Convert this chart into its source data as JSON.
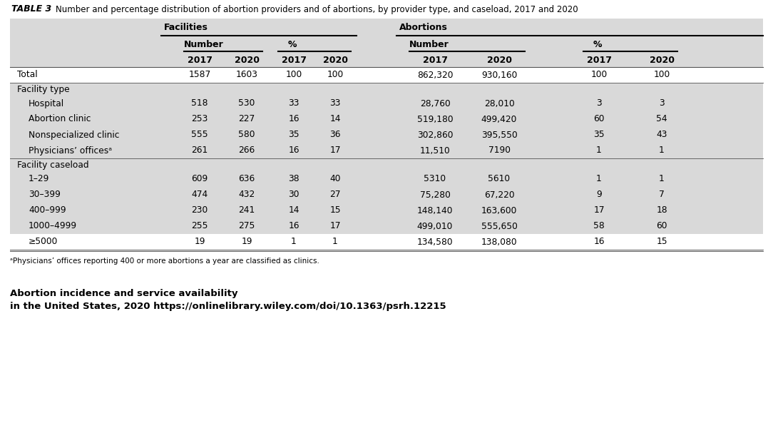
{
  "title_label": "TABLE 3",
  "title_text": "  Number and percentage distribution of abortion providers and of abortions, by provider type, and caseload, 2017 and 2020",
  "bg_color": "#d9d9d9",
  "white_color": "#ffffff",
  "text_color": "#000000",
  "header1": "Facilities",
  "header2": "Abortions",
  "subheader1": "Number",
  "subheader2": "%",
  "subheader3": "Number",
  "subheader4": "%",
  "col_years": [
    "2017",
    "2020",
    "2017",
    "2020",
    "2017",
    "2020",
    "2017",
    "2020"
  ],
  "rows": [
    {
      "label": "Total",
      "indent": 0,
      "section_header": false,
      "white_bg": true,
      "bottom_border": true,
      "values": [
        "1587",
        "1603",
        "100",
        "100",
        "862,320",
        "930,160",
        "100",
        "100"
      ]
    },
    {
      "label": "Facility type",
      "indent": 0,
      "section_header": true,
      "white_bg": false,
      "bottom_border": false,
      "values": [
        "",
        "",
        "",
        "",
        "",
        "",
        "",
        ""
      ]
    },
    {
      "label": "Hospital",
      "indent": 1,
      "section_header": false,
      "white_bg": false,
      "bottom_border": false,
      "values": [
        "518",
        "530",
        "33",
        "33",
        "28,760",
        "28,010",
        "3",
        "3"
      ]
    },
    {
      "label": "Abortion clinic",
      "indent": 1,
      "section_header": false,
      "white_bg": false,
      "bottom_border": false,
      "values": [
        "253",
        "227",
        "16",
        "14",
        "519,180",
        "499,420",
        "60",
        "54"
      ]
    },
    {
      "label": "Nonspecialized clinic",
      "indent": 1,
      "section_header": false,
      "white_bg": false,
      "bottom_border": false,
      "values": [
        "555",
        "580",
        "35",
        "36",
        "302,860",
        "395,550",
        "35",
        "43"
      ]
    },
    {
      "label": "Physicians’ officesᵃ",
      "indent": 1,
      "section_header": false,
      "white_bg": false,
      "bottom_border": true,
      "values": [
        "261",
        "266",
        "16",
        "17",
        "11,510",
        "7190",
        "1",
        "1"
      ]
    },
    {
      "label": "Facility caseload",
      "indent": 0,
      "section_header": true,
      "white_bg": false,
      "bottom_border": false,
      "values": [
        "",
        "",
        "",
        "",
        "",
        "",
        "",
        ""
      ]
    },
    {
      "label": "1–29",
      "indent": 1,
      "section_header": false,
      "white_bg": false,
      "bottom_border": false,
      "values": [
        "609",
        "636",
        "38",
        "40",
        "5310",
        "5610",
        "1",
        "1"
      ]
    },
    {
      "label": "30–399",
      "indent": 1,
      "section_header": false,
      "white_bg": false,
      "bottom_border": false,
      "values": [
        "474",
        "432",
        "30",
        "27",
        "75,280",
        "67,220",
        "9",
        "7"
      ]
    },
    {
      "label": "400–999",
      "indent": 1,
      "section_header": false,
      "white_bg": false,
      "bottom_border": false,
      "values": [
        "230",
        "241",
        "14",
        "15",
        "148,140",
        "163,600",
        "17",
        "18"
      ]
    },
    {
      "label": "1000–4999",
      "indent": 1,
      "section_header": false,
      "white_bg": false,
      "bottom_border": false,
      "values": [
        "255",
        "275",
        "16",
        "17",
        "499,010",
        "555,650",
        "58",
        "60"
      ]
    },
    {
      "label": "≥5000",
      "indent": 1,
      "section_header": false,
      "white_bg": true,
      "bottom_border": true,
      "values": [
        "19",
        "19",
        "1",
        "1",
        "134,580",
        "138,080",
        "16",
        "15"
      ]
    }
  ],
  "footnote": "ᵃPhysicians’ offices reporting 400 or more abortions a year are classified as clinics.",
  "bottom_bold_line1": "Abortion incidence and service availability",
  "bottom_bold_line2": "in the United States, 2020 https://onlinelibrary.wiley.com/doi/10.1363/psrh.12215",
  "fig_width": 10.84,
  "fig_height": 6.28,
  "dpi": 100
}
